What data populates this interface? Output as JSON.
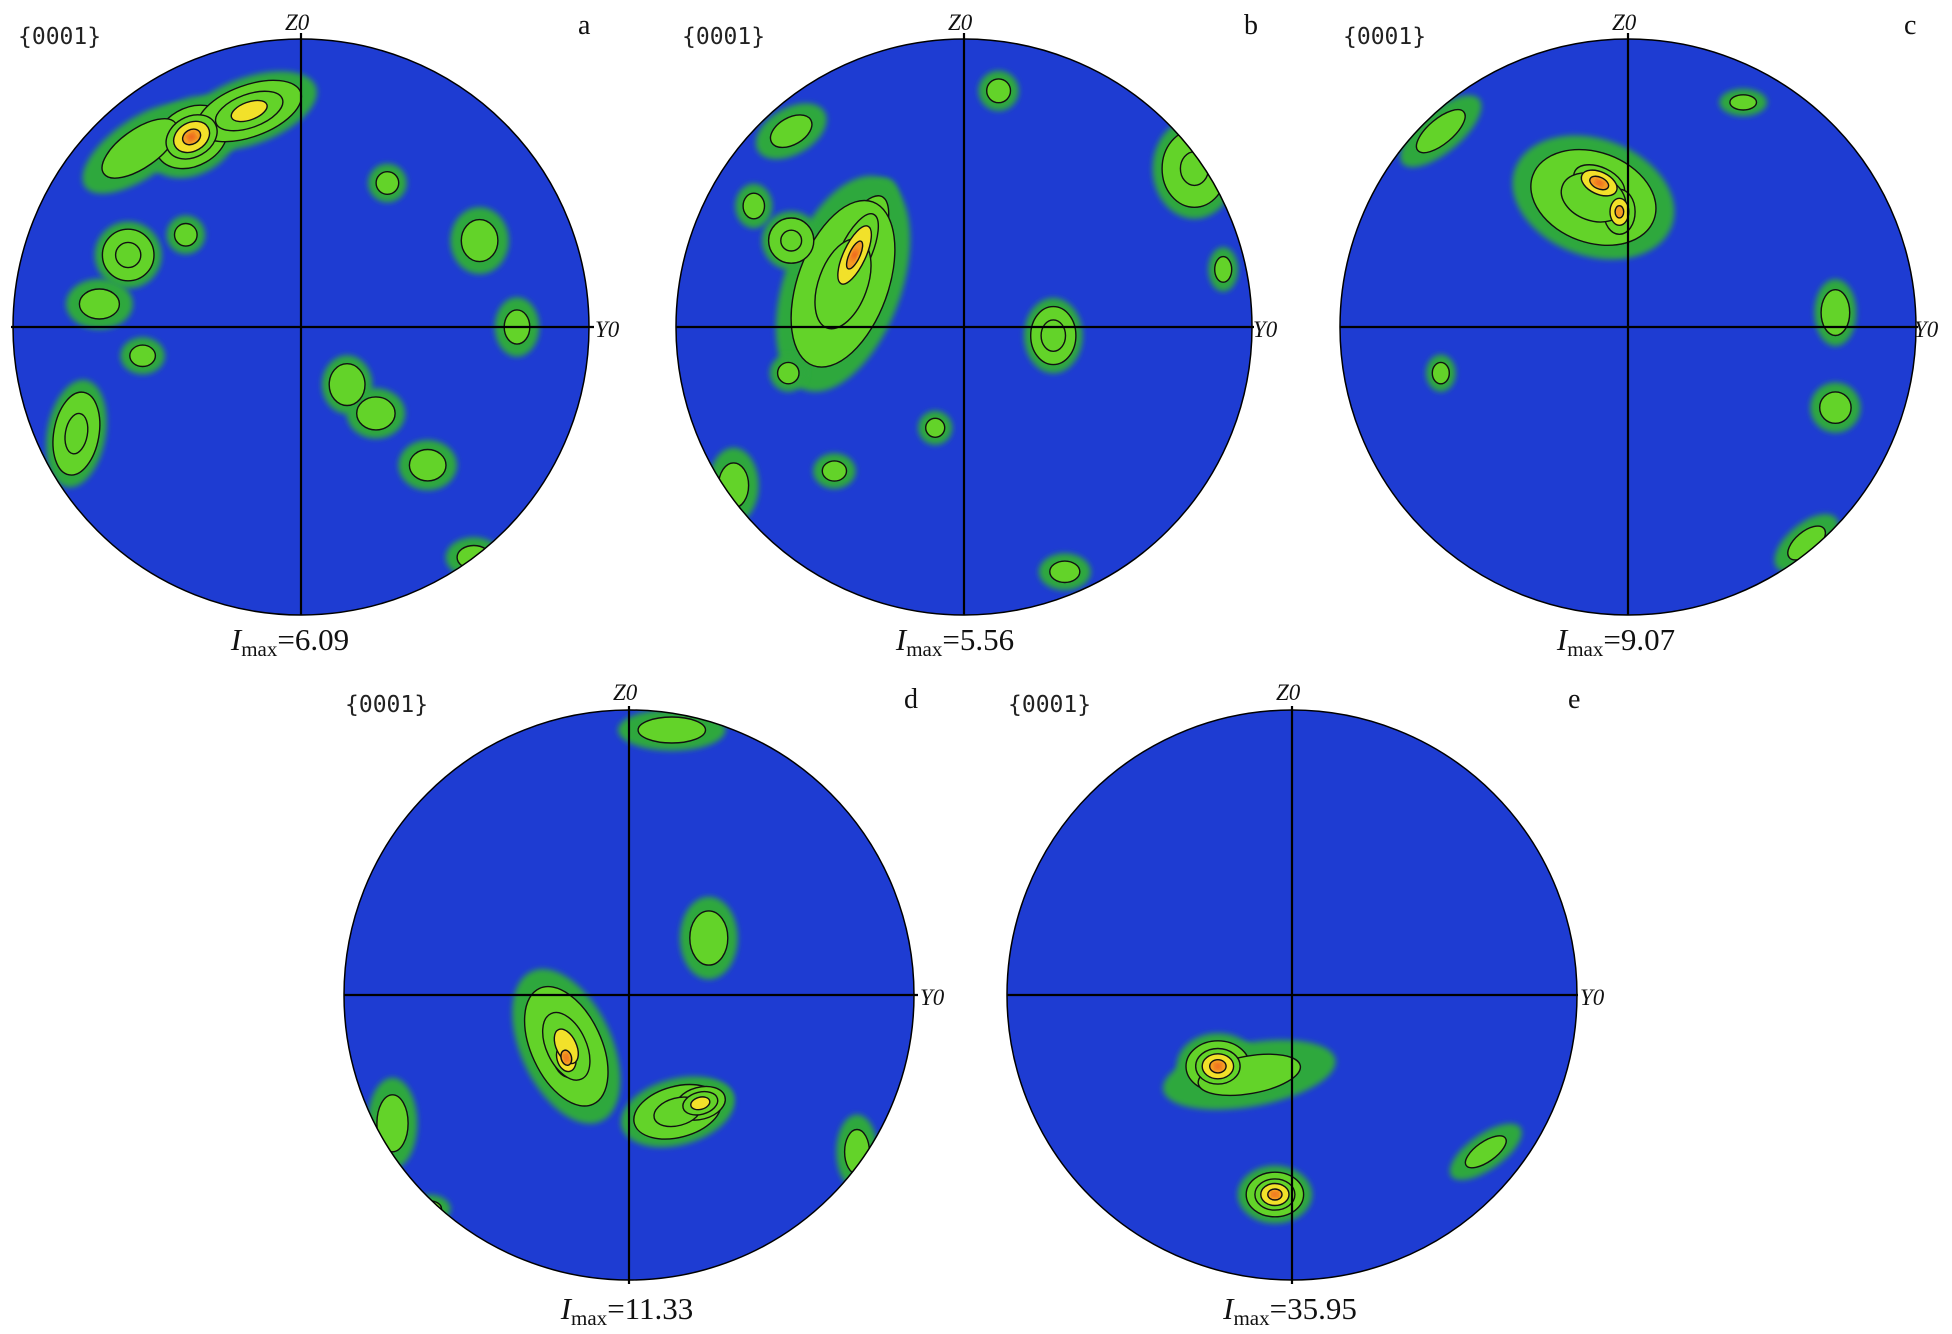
{
  "chart_data": [
    {
      "type": "pole_figure",
      "panel": "a",
      "plane": "{0001}",
      "axis_top": "Z0",
      "axis_right": "Y0",
      "imax_prefix": "I",
      "imax_subscript": "max",
      "imax_value": "=6.09",
      "colors": {
        "background": "#1e3cd2",
        "low": "#2fa83c",
        "mid": "#63d329",
        "high": "#f2e12a",
        "peak": "#e8301c"
      },
      "blobs": [
        {
          "u": -0.38,
          "v": 0.66,
          "rx": 0.12,
          "ry": 0.09,
          "rot": -30,
          "level": 3.5
        },
        {
          "u": -0.18,
          "v": 0.75,
          "rx": 0.17,
          "ry": 0.08,
          "rot": -20,
          "level": 2.6
        },
        {
          "u": -0.56,
          "v": 0.62,
          "rx": 0.16,
          "ry": 0.07,
          "rot": -35,
          "level": 1.4
        },
        {
          "u": -0.6,
          "v": 0.25,
          "rx": 0.08,
          "ry": 0.08,
          "rot": 0,
          "level": 2.0
        },
        {
          "u": -0.7,
          "v": 0.08,
          "rx": 0.08,
          "ry": 0.06,
          "rot": 0,
          "level": 1.2
        },
        {
          "u": -0.78,
          "v": -0.37,
          "rx": 0.07,
          "ry": 0.13,
          "rot": 10,
          "level": 2.0
        },
        {
          "u": -0.4,
          "v": 0.32,
          "rx": 0.05,
          "ry": 0.05,
          "rot": 0,
          "level": 1.0
        },
        {
          "u": 0.16,
          "v": -0.2,
          "rx": 0.06,
          "ry": 0.07,
          "rot": 0,
          "level": 1.6
        },
        {
          "u": 0.26,
          "v": -0.3,
          "rx": 0.07,
          "ry": 0.06,
          "rot": 0,
          "level": 1.4
        },
        {
          "u": 0.44,
          "v": -0.48,
          "rx": 0.07,
          "ry": 0.06,
          "rot": 0,
          "level": 1.3
        },
        {
          "u": 0.62,
          "v": 0.3,
          "rx": 0.07,
          "ry": 0.08,
          "rot": 0,
          "level": 1.3
        },
        {
          "u": 0.3,
          "v": 0.5,
          "rx": 0.05,
          "ry": 0.05,
          "rot": 0,
          "level": 1.0
        },
        {
          "u": -0.55,
          "v": -0.1,
          "rx": 0.06,
          "ry": 0.05,
          "rot": 0,
          "level": 0.9
        },
        {
          "u": 0.6,
          "v": -0.8,
          "rx": 0.07,
          "ry": 0.05,
          "rot": 0,
          "level": 1.1
        },
        {
          "u": 0.75,
          "v": 0.0,
          "rx": 0.06,
          "ry": 0.08,
          "rot": 0,
          "level": 0.9
        }
      ]
    },
    {
      "type": "pole_figure",
      "panel": "b",
      "plane": "{0001}",
      "axis_top": "Z0",
      "axis_right": "Y0",
      "imax_prefix": "I",
      "imax_subscript": "max",
      "imax_value": "=5.56",
      "colors": {
        "background": "#1e3cd2",
        "low": "#2fa83c",
        "mid": "#63d329",
        "high": "#f2e12a",
        "peak": "#e8301c"
      },
      "blobs": [
        {
          "u": -0.38,
          "v": 0.25,
          "rx": 0.07,
          "ry": 0.2,
          "rot": 25,
          "level": 3.4
        },
        {
          "u": -0.42,
          "v": 0.15,
          "rx": 0.14,
          "ry": 0.27,
          "rot": 20,
          "level": 2.2
        },
        {
          "u": -0.6,
          "v": 0.3,
          "rx": 0.07,
          "ry": 0.07,
          "rot": 0,
          "level": 1.9
        },
        {
          "u": 0.31,
          "v": -0.03,
          "rx": 0.07,
          "ry": 0.09,
          "rot": 0,
          "level": 2.2
        },
        {
          "u": 0.8,
          "v": 0.55,
          "rx": 0.1,
          "ry": 0.12,
          "rot": 0,
          "level": 1.8
        },
        {
          "u": 0.12,
          "v": 0.82,
          "rx": 0.05,
          "ry": 0.05,
          "rot": 0,
          "level": 1.1
        },
        {
          "u": -0.6,
          "v": 0.68,
          "rx": 0.1,
          "ry": 0.06,
          "rot": -30,
          "level": 1.0
        },
        {
          "u": -0.73,
          "v": 0.42,
          "rx": 0.05,
          "ry": 0.06,
          "rot": 0,
          "level": 0.9
        },
        {
          "u": -0.61,
          "v": -0.16,
          "rx": 0.05,
          "ry": 0.05,
          "rot": 0,
          "level": 0.9
        },
        {
          "u": -0.8,
          "v": -0.55,
          "rx": 0.06,
          "ry": 0.09,
          "rot": 0,
          "level": 1.2
        },
        {
          "u": -0.45,
          "v": -0.5,
          "rx": 0.06,
          "ry": 0.05,
          "rot": 0,
          "level": 0.8
        },
        {
          "u": 0.35,
          "v": -0.85,
          "rx": 0.07,
          "ry": 0.05,
          "rot": 0,
          "level": 0.9
        },
        {
          "u": -0.1,
          "v": -0.35,
          "rx": 0.05,
          "ry": 0.05,
          "rot": 0,
          "level": 0.7
        },
        {
          "u": 0.9,
          "v": 0.2,
          "rx": 0.04,
          "ry": 0.06,
          "rot": 0,
          "level": 0.9
        }
      ]
    },
    {
      "type": "pole_figure",
      "panel": "c",
      "plane": "{0001}",
      "axis_top": "Z0",
      "axis_right": "Y0",
      "imax_prefix": "I",
      "imax_subscript": "max",
      "imax_value": "=9.07",
      "colors": {
        "background": "#1e3cd2",
        "low": "#2fa83c",
        "mid": "#63d329",
        "high": "#f2e12a",
        "peak": "#e8301c"
      },
      "blobs": [
        {
          "u": -0.1,
          "v": 0.5,
          "rx": 0.12,
          "ry": 0.07,
          "rot": 25,
          "level": 3.6
        },
        {
          "u": -0.03,
          "v": 0.4,
          "rx": 0.07,
          "ry": 0.1,
          "rot": 0,
          "level": 3.0
        },
        {
          "u": -0.12,
          "v": 0.45,
          "rx": 0.2,
          "ry": 0.14,
          "rot": 20,
          "level": 2.1
        },
        {
          "u": 0.72,
          "v": 0.05,
          "rx": 0.05,
          "ry": 0.08,
          "rot": 0,
          "level": 1.5
        },
        {
          "u": 0.72,
          "v": -0.28,
          "rx": 0.06,
          "ry": 0.06,
          "rot": 0,
          "level": 1.3
        },
        {
          "u": -0.65,
          "v": 0.68,
          "rx": 0.12,
          "ry": 0.05,
          "rot": -40,
          "level": 1.2
        },
        {
          "u": -0.65,
          "v": -0.16,
          "rx": 0.04,
          "ry": 0.05,
          "rot": 0,
          "level": 0.9
        },
        {
          "u": 0.62,
          "v": -0.75,
          "rx": 0.1,
          "ry": 0.05,
          "rot": -40,
          "level": 1.0
        },
        {
          "u": 0.4,
          "v": 0.78,
          "rx": 0.07,
          "ry": 0.04,
          "rot": 0,
          "level": 0.7
        }
      ]
    },
    {
      "type": "pole_figure",
      "panel": "d",
      "plane": "{0001}",
      "axis_top": "Z0",
      "axis_right": "Y0",
      "imax_prefix": "I",
      "imax_subscript": "max",
      "imax_value": "=11.33",
      "colors": {
        "background": "#1e3cd2",
        "low": "#2fa83c",
        "mid": "#63d329",
        "high": "#f2e12a",
        "peak": "#e8301c"
      },
      "blobs": [
        {
          "u": -0.22,
          "v": -0.22,
          "rx": 0.06,
          "ry": 0.09,
          "rot": -15,
          "level": 3.7
        },
        {
          "u": -0.22,
          "v": -0.18,
          "rx": 0.11,
          "ry": 0.2,
          "rot": -25,
          "level": 2.3
        },
        {
          "u": 0.17,
          "v": -0.41,
          "rx": 0.14,
          "ry": 0.08,
          "rot": -15,
          "level": 2.2
        },
        {
          "u": 0.25,
          "v": -0.38,
          "rx": 0.08,
          "ry": 0.05,
          "rot": -15,
          "level": 2.8
        },
        {
          "u": 0.28,
          "v": 0.2,
          "rx": 0.07,
          "ry": 0.1,
          "rot": 0,
          "level": 1.4
        },
        {
          "u": 0.15,
          "v": 0.93,
          "rx": 0.13,
          "ry": 0.05,
          "rot": 0,
          "level": 1.3
        },
        {
          "u": -0.83,
          "v": -0.45,
          "rx": 0.06,
          "ry": 0.11,
          "rot": 0,
          "level": 1.3
        },
        {
          "u": 0.8,
          "v": -0.55,
          "rx": 0.05,
          "ry": 0.09,
          "rot": 0,
          "level": 1.2
        },
        {
          "u": -0.7,
          "v": -0.75,
          "rx": 0.06,
          "ry": 0.04,
          "rot": 0,
          "level": 0.8
        }
      ]
    },
    {
      "type": "pole_figure",
      "panel": "e",
      "plane": "{0001}",
      "axis_top": "Z0",
      "axis_right": "Y0",
      "imax_prefix": "I",
      "imax_subscript": "max",
      "imax_value": "=35.95",
      "colors": {
        "background": "#1e3cd2",
        "low": "#2fa83c",
        "mid": "#63d329",
        "high": "#f2e12a",
        "peak": "#e8301c"
      },
      "blobs": [
        {
          "u": -0.26,
          "v": -0.25,
          "rx": 0.1,
          "ry": 0.08,
          "rot": 0,
          "level": 3.6
        },
        {
          "u": -0.15,
          "v": -0.28,
          "rx": 0.22,
          "ry": 0.08,
          "rot": -10,
          "level": 1.1
        },
        {
          "u": -0.06,
          "v": -0.7,
          "rx": 0.09,
          "ry": 0.07,
          "rot": 0,
          "level": 3.5
        },
        {
          "u": 0.68,
          "v": -0.55,
          "rx": 0.12,
          "ry": 0.05,
          "rot": -35,
          "level": 0.8
        }
      ]
    }
  ]
}
